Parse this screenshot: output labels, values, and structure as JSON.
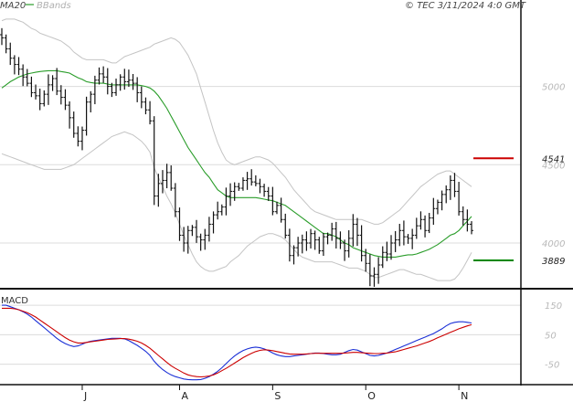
{
  "chart_data": [
    {
      "type": "candlestick",
      "legend": [
        {
          "label": "MA20",
          "color": "#2a9d2a"
        },
        {
          "label": "BBands",
          "color": "#bdbdbd"
        }
      ],
      "legend_placement": "top-left",
      "watermark": "© TEC 3/11/2024 4:0 GMT",
      "ylim": [
        3720,
        5470
      ],
      "y_ticks": [
        {
          "label": "5000",
          "value": 5000
        },
        {
          "label": "4500",
          "value": 4500
        },
        {
          "label": "4000",
          "value": 4000
        }
      ],
      "x_labels": [
        {
          "label": "J",
          "index": 19
        },
        {
          "label": "A",
          "index": 42
        },
        {
          "label": "S",
          "index": 64
        },
        {
          "label": "O",
          "index": 86
        },
        {
          "label": "N",
          "index": 108
        }
      ],
      "levels": [
        {
          "label": "4541",
          "value": 4541,
          "color": "#cc0000"
        },
        {
          "label": "3889",
          "value": 3889,
          "color": "#008800"
        }
      ],
      "close": [
        5310,
        5240,
        5180,
        5140,
        5110,
        5060,
        5020,
        4960,
        4940,
        4890,
        4950,
        5010,
        5050,
        4970,
        4930,
        4880,
        4800,
        4700,
        4650,
        4720,
        4900,
        4950,
        5040,
        5080,
        5060,
        5000,
        4960,
        5010,
        5060,
        5030,
        5040,
        5020,
        4960,
        4900,
        4850,
        4780,
        4300,
        4380,
        4400,
        4450,
        4350,
        4200,
        4050,
        4000,
        4080,
        4100,
        4040,
        4020,
        4050,
        4120,
        4180,
        4200,
        4230,
        4300,
        4330,
        4360,
        4350,
        4400,
        4410,
        4390,
        4380,
        4360,
        4330,
        4300,
        4200,
        4240,
        4150,
        4050,
        3920,
        3970,
        4000,
        4020,
        4000,
        4060,
        4020,
        3950,
        4040,
        4050,
        4090,
        4030,
        4000,
        3950,
        4030,
        4120,
        4050,
        3920,
        3870,
        3790,
        3800,
        3860,
        3940,
        3930,
        4000,
        4020,
        4080,
        4040,
        4030,
        4050,
        4110,
        4150,
        4080,
        4160,
        4220,
        4260,
        4310,
        4340,
        4400,
        4330,
        4200,
        4150,
        4120,
        4080
      ],
      "bb_upper": [
        5420,
        5430,
        5430,
        5430,
        5420,
        5410,
        5390,
        5370,
        5360,
        5340,
        5330,
        5320,
        5310,
        5300,
        5290,
        5270,
        5250,
        5220,
        5200,
        5180,
        5170,
        5170,
        5170,
        5170,
        5170,
        5160,
        5150,
        5150,
        5170,
        5190,
        5200,
        5210,
        5220,
        5230,
        5240,
        5250,
        5270,
        5280,
        5290,
        5300,
        5310,
        5300,
        5280,
        5240,
        5200,
        5140,
        5080,
        4990,
        4900,
        4810,
        4720,
        4640,
        4580,
        4530,
        4510,
        4500,
        4510,
        4520,
        4530,
        4540,
        4550,
        4550,
        4540,
        4530,
        4510,
        4480,
        4450,
        4420,
        4380,
        4340,
        4310,
        4280,
        4250,
        4220,
        4200,
        4190,
        4180,
        4170,
        4160,
        4150,
        4150,
        4150,
        4150,
        4150,
        4150,
        4150,
        4140,
        4130,
        4120,
        4120,
        4130,
        4150,
        4170,
        4190,
        4210,
        4240,
        4270,
        4300,
        4330,
        4360,
        4380,
        4400,
        4420,
        4440,
        4450,
        4460,
        4460,
        4440,
        4420,
        4400,
        4380,
        4360
      ],
      "bb_lower": [
        4570,
        4560,
        4550,
        4540,
        4530,
        4520,
        4510,
        4500,
        4490,
        4480,
        4470,
        4470,
        4470,
        4470,
        4470,
        4480,
        4490,
        4500,
        4520,
        4540,
        4560,
        4580,
        4600,
        4620,
        4640,
        4660,
        4680,
        4690,
        4700,
        4710,
        4700,
        4690,
        4670,
        4650,
        4620,
        4580,
        4480,
        4420,
        4360,
        4300,
        4250,
        4190,
        4120,
        4050,
        3990,
        3930,
        3880,
        3850,
        3830,
        3820,
        3820,
        3830,
        3840,
        3850,
        3880,
        3900,
        3920,
        3950,
        3980,
        4000,
        4020,
        4040,
        4050,
        4060,
        4060,
        4050,
        4040,
        4020,
        3990,
        3960,
        3930,
        3910,
        3900,
        3890,
        3880,
        3880,
        3880,
        3880,
        3880,
        3870,
        3860,
        3850,
        3840,
        3840,
        3840,
        3830,
        3820,
        3800,
        3780,
        3780,
        3790,
        3800,
        3810,
        3820,
        3830,
        3830,
        3820,
        3810,
        3800,
        3800,
        3790,
        3780,
        3770,
        3760,
        3760,
        3760,
        3760,
        3770,
        3800,
        3840,
        3890,
        3940
      ],
      "ma20": [
        4990,
        5010,
        5030,
        5045,
        5060,
        5070,
        5080,
        5085,
        5090,
        5095,
        5098,
        5100,
        5100,
        5100,
        5095,
        5090,
        5085,
        5070,
        5055,
        5045,
        5030,
        5025,
        5020,
        5020,
        5020,
        5015,
        5010,
        5010,
        5010,
        5010,
        5010,
        5010,
        5010,
        5005,
        5000,
        4990,
        4970,
        4940,
        4900,
        4860,
        4810,
        4760,
        4710,
        4660,
        4610,
        4570,
        4530,
        4490,
        4450,
        4420,
        4380,
        4340,
        4320,
        4300,
        4290,
        4290,
        4290,
        4290,
        4290,
        4290,
        4290,
        4285,
        4280,
        4275,
        4270,
        4260,
        4250,
        4240,
        4220,
        4200,
        4180,
        4160,
        4140,
        4120,
        4100,
        4080,
        4060,
        4060,
        4050,
        4040,
        4020,
        4000,
        3990,
        3970,
        3960,
        3950,
        3940,
        3930,
        3920,
        3915,
        3910,
        3910,
        3910,
        3910,
        3915,
        3920,
        3925,
        3925,
        3930,
        3940,
        3950,
        3960,
        3975,
        3990,
        4010,
        4030,
        4050,
        4060,
        4080,
        4110,
        4140,
        4170
      ],
      "panels": [
        {
          "type": "line",
          "title": "MACD",
          "ylim": [
            -110,
            200
          ],
          "y_ticks": [
            {
              "label": "150",
              "value": 150
            },
            {
              "label": "50",
              "value": 50
            },
            {
              "label": "-50",
              "value": -50
            }
          ],
          "series": [
            {
              "role": "macd",
              "color": "#1a2fd6",
              "values": [
                150,
                150,
                145,
                140,
                135,
                128,
                120,
                110,
                98,
                86,
                74,
                62,
                50,
                38,
                28,
                20,
                14,
                10,
                12,
                18,
                24,
                28,
                30,
                32,
                34,
                36,
                38,
                38,
                38,
                36,
                30,
                22,
                14,
                4,
                -6,
                -20,
                -40,
                -55,
                -68,
                -78,
                -86,
                -92,
                -96,
                -100,
                -102,
                -103,
                -103,
                -102,
                -98,
                -92,
                -84,
                -74,
                -62,
                -48,
                -34,
                -22,
                -12,
                -4,
                2,
                6,
                8,
                6,
                2,
                -4,
                -12,
                -18,
                -22,
                -24,
                -24,
                -22,
                -20,
                -18,
                -16,
                -14,
                -12,
                -12,
                -14,
                -16,
                -18,
                -18,
                -16,
                -10,
                -4,
                0,
                -2,
                -8,
                -14,
                -20,
                -22,
                -20,
                -16,
                -12,
                -6,
                0,
                6,
                12,
                18,
                24,
                30,
                36,
                42,
                48,
                54,
                62,
                70,
                80,
                88,
                92,
                94,
                94,
                92,
                90
              ]
            },
            {
              "role": "signal",
              "color": "#cc0000",
              "values": [
                140,
                140,
                140,
                138,
                135,
                130,
                125,
                118,
                110,
                100,
                90,
                80,
                70,
                60,
                50,
                40,
                32,
                26,
                22,
                22,
                24,
                26,
                28,
                30,
                32,
                34,
                35,
                36,
                37,
                37,
                35,
                32,
                28,
                22,
                14,
                4,
                -8,
                -20,
                -32,
                -44,
                -55,
                -64,
                -72,
                -80,
                -86,
                -90,
                -92,
                -93,
                -92,
                -90,
                -86,
                -80,
                -72,
                -64,
                -55,
                -46,
                -37,
                -28,
                -20,
                -13,
                -7,
                -3,
                -1,
                -2,
                -4,
                -7,
                -10,
                -13,
                -15,
                -16,
                -16,
                -16,
                -15,
                -14,
                -13,
                -13,
                -13,
                -13,
                -13,
                -13,
                -13,
                -12,
                -11,
                -10,
                -10,
                -11,
                -12,
                -13,
                -14,
                -14,
                -13,
                -12,
                -10,
                -8,
                -4,
                0,
                4,
                8,
                12,
                17,
                22,
                27,
                33,
                40,
                46,
                52,
                58,
                64,
                70,
                75,
                80,
                84
              ]
            }
          ]
        }
      ]
    }
  ]
}
